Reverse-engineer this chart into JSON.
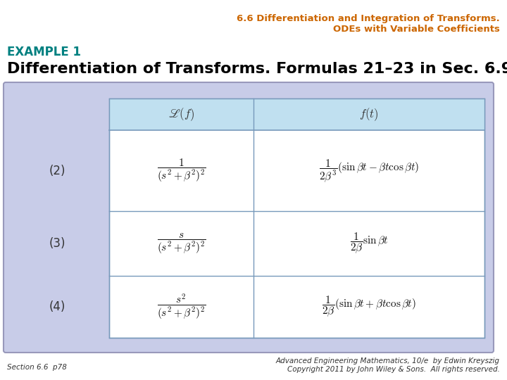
{
  "title_line1": "6.6 Differentiation and Integration of Transforms.",
  "title_line2": "ODEs with Variable Coefficients",
  "title_color": "#CC6600",
  "example_label": "EXAMPLE 1",
  "example_color": "#008080",
  "subtitle": "Differentiation of Transforms. Formulas 21–23 in Sec. 6.9",
  "subtitle_color": "#000000",
  "bg_color": "#C8CCE8",
  "table_header_bg": "#C0E0F0",
  "outer_bg": "#FFFFFF",
  "footer_left": "Section 6.6  p78",
  "footer_right_line1": "Advanced Engineering Mathematics, 10/e  by Edwin Kreyszig",
  "footer_right_line2": "Copyright 2011 by John Wiley & Sons.  All rights reserved.",
  "col_headers": [
    "$\\mathscr{L}(f)$",
    "$f(t)$"
  ],
  "row_labels": [
    "(2)",
    "(3)",
    "(4)"
  ],
  "laplaces": [
    "$\\dfrac{1}{(s^2+\\beta^2)^2}$",
    "$\\dfrac{s}{(s^2+\\beta^2)^2}$",
    "$\\dfrac{s^2}{(s^2+\\beta^2)^2}$"
  ],
  "ftvals": [
    "$\\dfrac{1}{2\\beta^3}(\\sin\\beta t - \\beta t\\cos\\beta t)$",
    "$\\dfrac{1}{2\\beta}\\sin\\beta t$",
    "$\\dfrac{1}{2\\beta}(\\sin\\beta t + \\beta t\\cos\\beta t)$"
  ],
  "title_fontsize": 9.5,
  "example_fontsize": 12,
  "subtitle_fontsize": 16,
  "header_fontsize": 12,
  "cell_fontsize": 11,
  "label_fontsize": 12,
  "footer_fontsize": 7.5
}
